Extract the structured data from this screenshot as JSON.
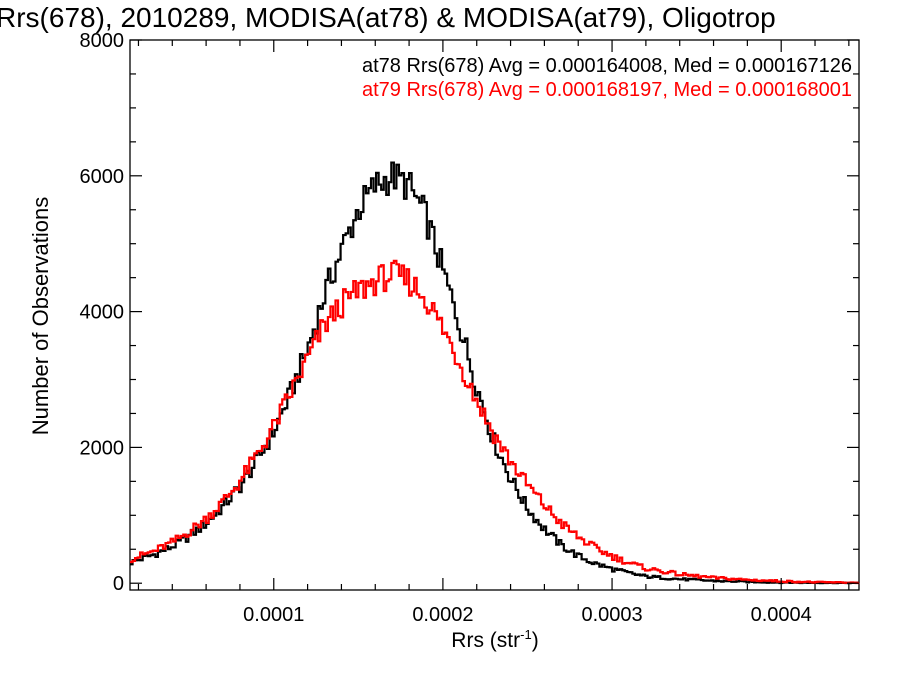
{
  "chart_data": {
    "type": "line",
    "title": "Rrs(678), 2010289, MODISA(at78) & MODISA(at79), Oligotrop",
    "xlabel_main": "Rrs (str",
    "xlabel_sup": "-1",
    "xlabel_close": ")",
    "ylabel": "Number of Observations",
    "xlim": [
      1.5e-05,
      0.000446
    ],
    "ylim": [
      -100,
      8000
    ],
    "xticks": [
      0.0001,
      0.0002,
      0.0003,
      0.0004
    ],
    "xtick_labels": [
      "0.0001",
      "0.0002",
      "0.0003",
      "0.0004"
    ],
    "yticks": [
      0,
      2000,
      4000,
      6000,
      8000
    ],
    "ytick_labels": [
      "0",
      "2000",
      "4000",
      "6000",
      "8000"
    ],
    "grid": false,
    "legend_position": "top-right",
    "bin_width": 1.5e-06,
    "series": [
      {
        "name": "at78",
        "color": "#000000",
        "stat_label": "at78 Rrs(678) Avg = 0.000164008, Med = 0.000167126",
        "points": [
          [
            1.5e-05,
            300
          ],
          [
            3e-05,
            430
          ],
          [
            4e-05,
            540
          ],
          [
            5e-05,
            690
          ],
          [
            6e-05,
            880
          ],
          [
            7e-05,
            1130
          ],
          [
            8e-05,
            1420
          ],
          [
            9e-05,
            1800
          ],
          [
            0.0001,
            2230
          ],
          [
            0.00011,
            2800
          ],
          [
            0.00012,
            3450
          ],
          [
            0.00013,
            4250
          ],
          [
            0.00014,
            4900
          ],
          [
            0.00015,
            5500
          ],
          [
            0.00016,
            5850
          ],
          [
            0.00017,
            6000
          ],
          [
            0.00018,
            5850
          ],
          [
            0.00019,
            5400
          ],
          [
            0.0002,
            4600
          ],
          [
            0.00021,
            3800
          ],
          [
            0.00022,
            2900
          ],
          [
            0.00023,
            2100
          ],
          [
            0.00024,
            1550
          ],
          [
            0.00025,
            1100
          ],
          [
            0.00026,
            800
          ],
          [
            0.00027,
            560
          ],
          [
            0.00028,
            400
          ],
          [
            0.00029,
            290
          ],
          [
            0.0003,
            210
          ],
          [
            0.00031,
            150
          ],
          [
            0.00032,
            100
          ],
          [
            0.00034,
            60
          ],
          [
            0.00036,
            35
          ],
          [
            0.00038,
            20
          ],
          [
            0.0004,
            10
          ],
          [
            0.00042,
            6
          ],
          [
            0.000446,
            3
          ]
        ]
      },
      {
        "name": "at79",
        "color": "#ff0000",
        "stat_label": "at79 Rrs(678) Avg = 0.000168197, Med = 0.000168001",
        "points": [
          [
            1.5e-05,
            350
          ],
          [
            3e-05,
            480
          ],
          [
            4e-05,
            600
          ],
          [
            5e-05,
            760
          ],
          [
            6e-05,
            950
          ],
          [
            7e-05,
            1200
          ],
          [
            8e-05,
            1500
          ],
          [
            9e-05,
            1880
          ],
          [
            0.0001,
            2300
          ],
          [
            0.00011,
            2800
          ],
          [
            0.00012,
            3300
          ],
          [
            0.00013,
            3800
          ],
          [
            0.00014,
            4100
          ],
          [
            0.00015,
            4300
          ],
          [
            0.00016,
            4450
          ],
          [
            0.00017,
            4550
          ],
          [
            0.00018,
            4450
          ],
          [
            0.00019,
            4200
          ],
          [
            0.0002,
            3750
          ],
          [
            0.00021,
            3250
          ],
          [
            0.00022,
            2700
          ],
          [
            0.00023,
            2200
          ],
          [
            0.00024,
            1800
          ],
          [
            0.00025,
            1450
          ],
          [
            0.00026,
            1150
          ],
          [
            0.00027,
            880
          ],
          [
            0.00028,
            680
          ],
          [
            0.00029,
            520
          ],
          [
            0.0003,
            400
          ],
          [
            0.00031,
            300
          ],
          [
            0.00032,
            220
          ],
          [
            0.00034,
            130
          ],
          [
            0.00036,
            80
          ],
          [
            0.00038,
            50
          ],
          [
            0.0004,
            30
          ],
          [
            0.00042,
            15
          ],
          [
            0.000446,
            8
          ]
        ]
      }
    ]
  }
}
